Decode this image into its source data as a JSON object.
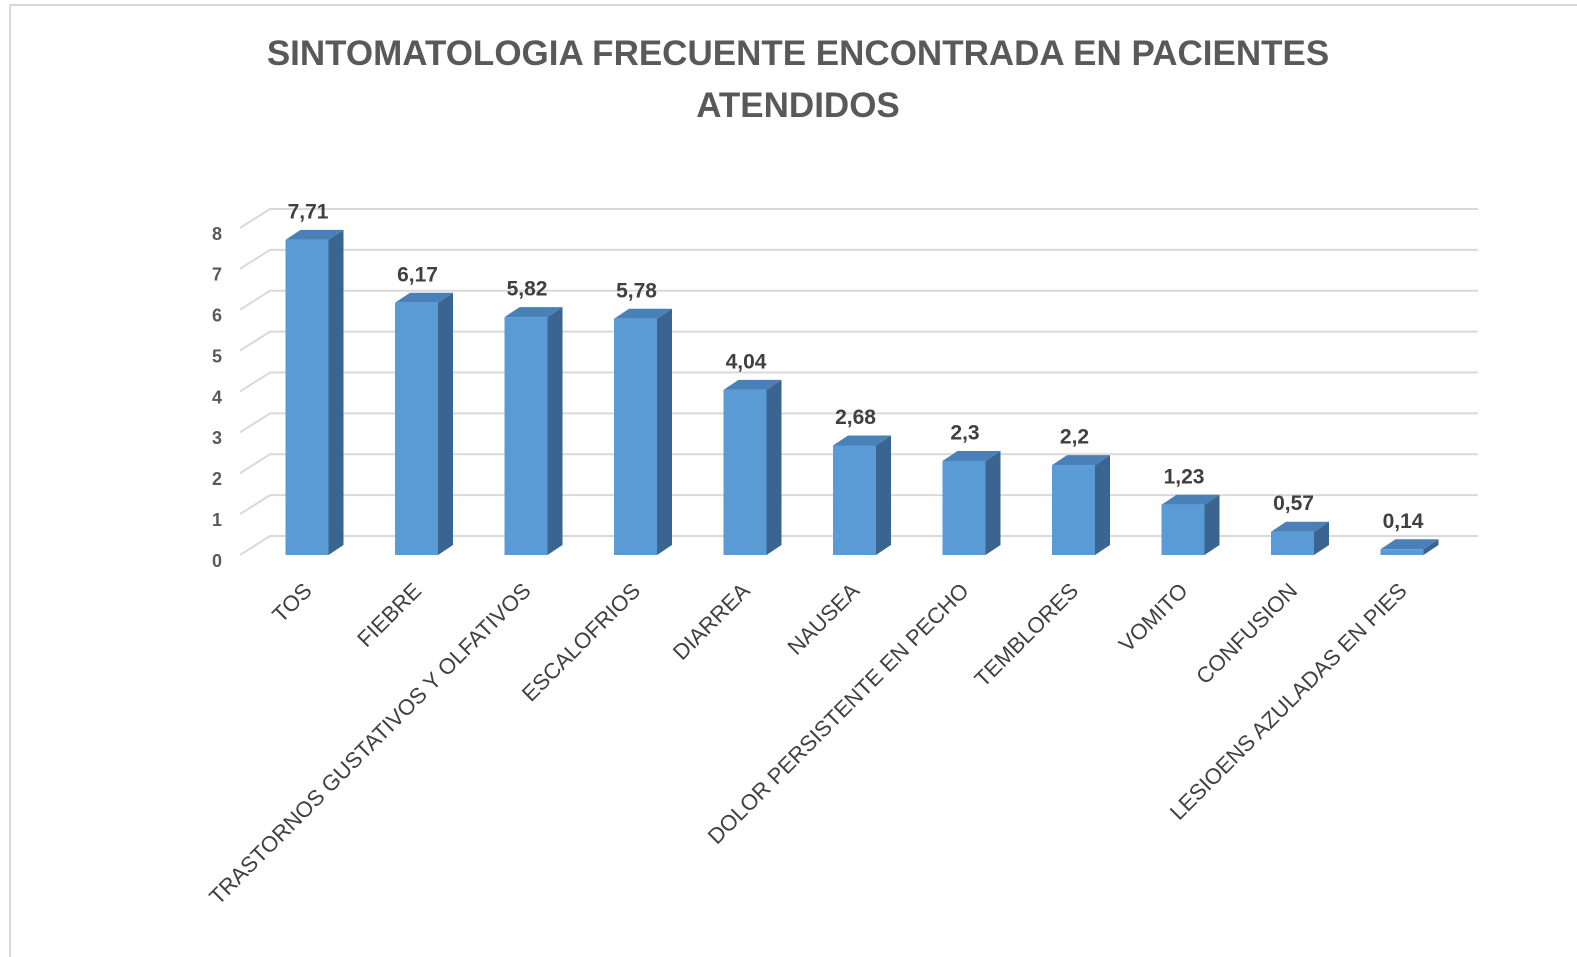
{
  "chart_data": {
    "type": "bar",
    "title": "SINTOMATOLOGIA FRECUENTE ENCONTRADA EN PACIENTES ATENDIDOS",
    "categories": [
      "TOS",
      "FIEBRE",
      "TRASTORNOS GUSTATIVOS Y OLFATIVOS",
      "ESCALOFRIOS",
      "DIARREA",
      "NAUSEA",
      "DOLOR PERSISTENTE EN PECHO",
      "TEMBLORES",
      "VOMITO",
      "CONFUSION",
      "LESIOENS AZULADAS EN PIES"
    ],
    "values": [
      7.71,
      6.17,
      5.82,
      5.78,
      4.04,
      2.68,
      2.3,
      2.2,
      1.23,
      0.57,
      0.14
    ],
    "value_labels": [
      "7,71",
      "6,17",
      "5,82",
      "5,78",
      "4,04",
      "2,68",
      "2,3",
      "2,2",
      "1,23",
      "0,57",
      "0,14"
    ],
    "color": "#5b9bd5",
    "ylim": [
      0,
      8
    ],
    "yticks": [
      0,
      1,
      2,
      3,
      4,
      5,
      6,
      7,
      8
    ],
    "grid": true
  }
}
